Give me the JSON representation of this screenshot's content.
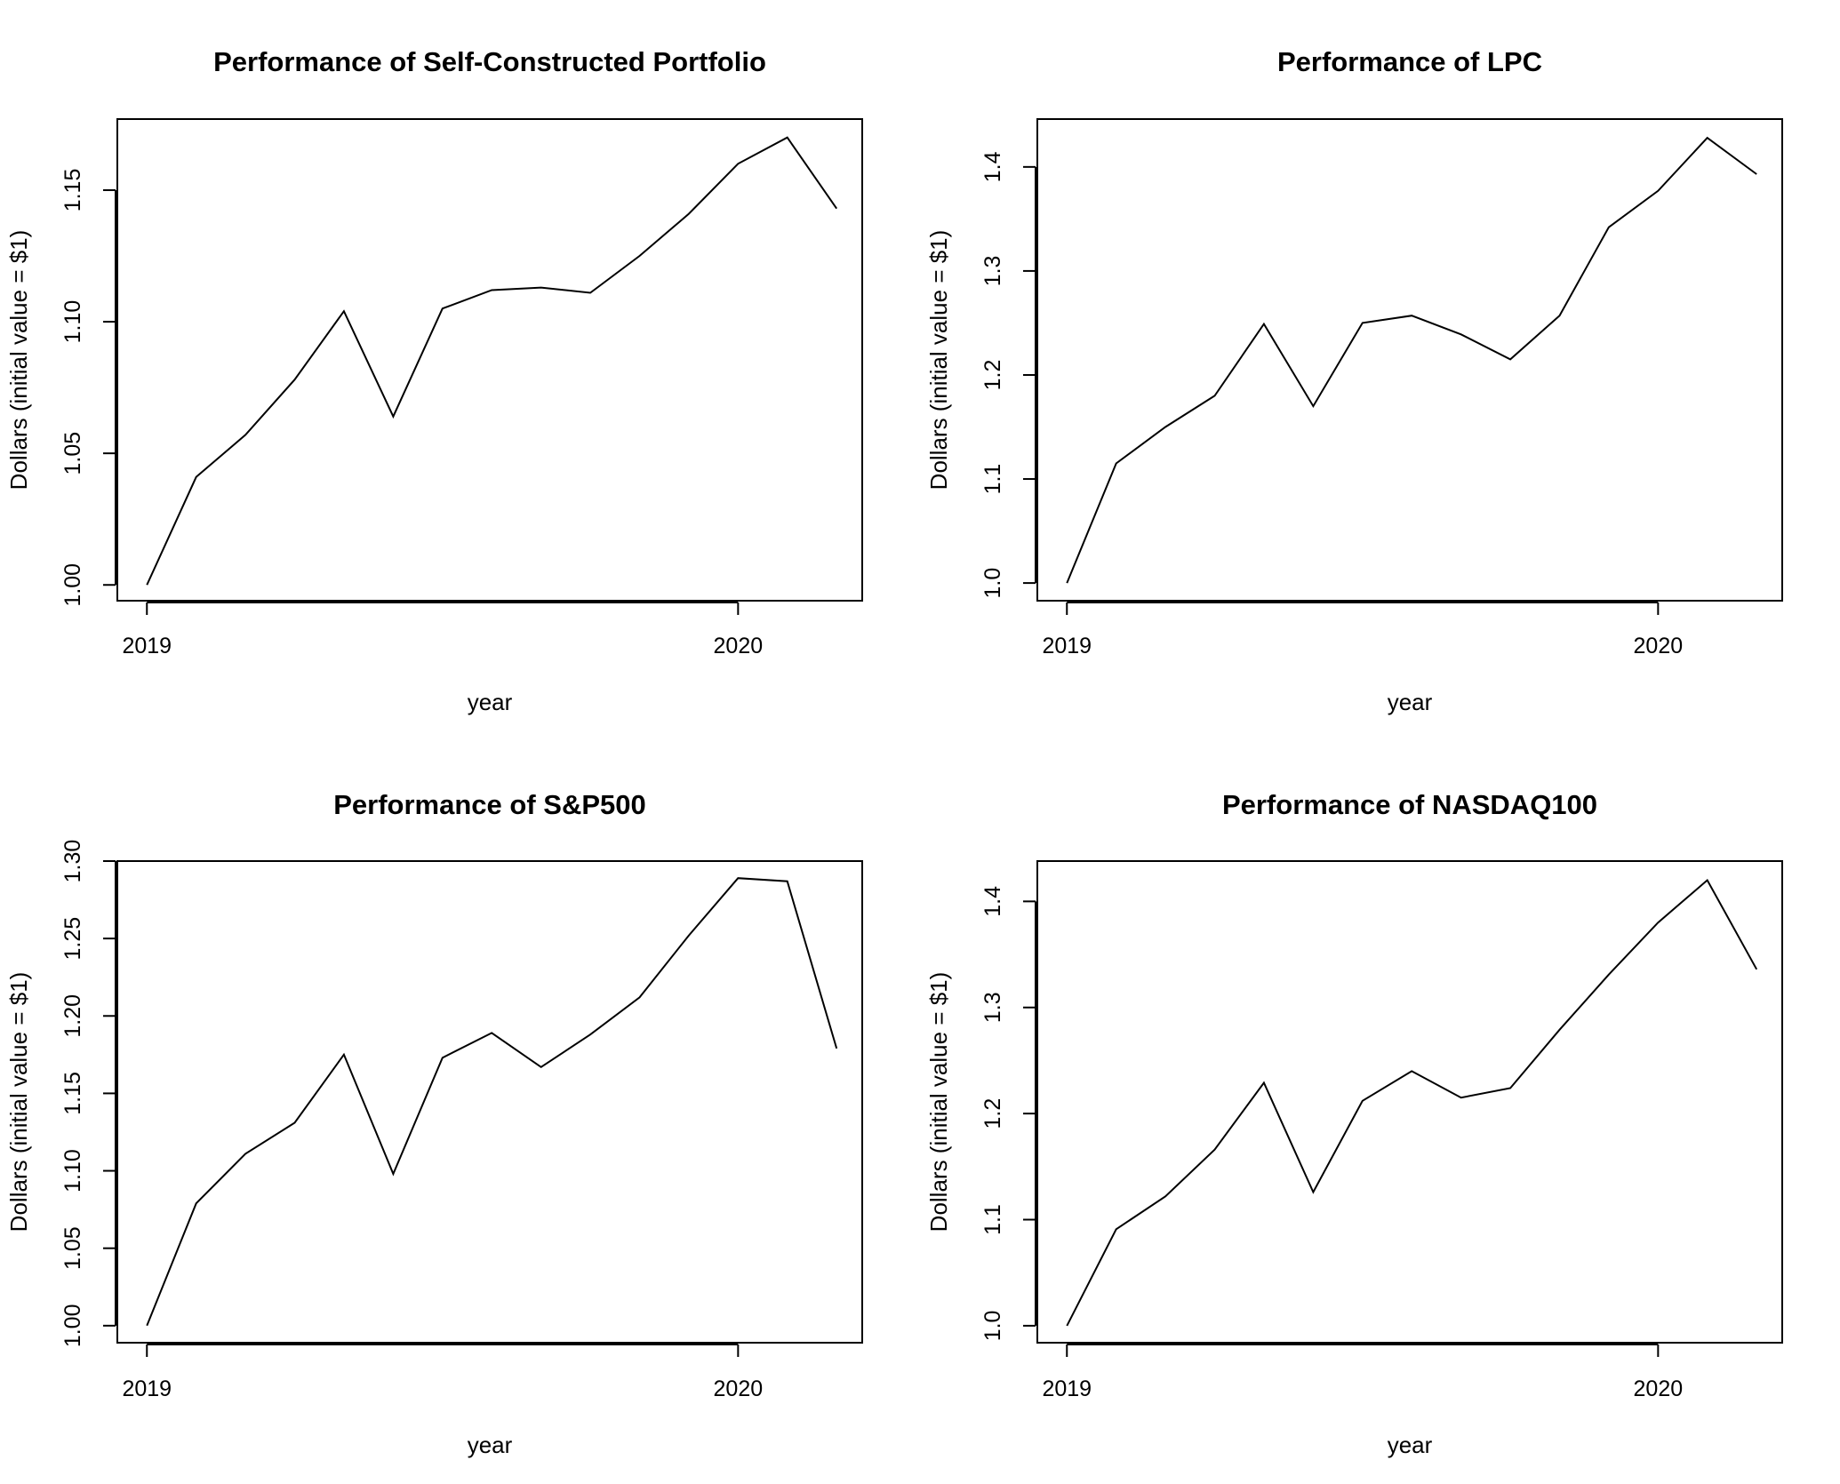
{
  "chart_data": [
    {
      "type": "line",
      "title": "Performance of Self-Constructed Portfolio",
      "xlabel": "year",
      "ylabel": "Dollars (initial value = $1)",
      "xlim": [
        2018.95,
        2020.21
      ],
      "ylim": [
        0.994,
        1.177
      ],
      "x_ticks": [
        2019,
        2020
      ],
      "y_ticks": [
        "1.00",
        "1.05",
        "1.10",
        "1.15"
      ],
      "grid": false,
      "x": [
        2019.0,
        2019.0833,
        2019.1667,
        2019.25,
        2019.3333,
        2019.4167,
        2019.5,
        2019.5833,
        2019.6667,
        2019.75,
        2019.8333,
        2019.9167,
        2020.0,
        2020.0833,
        2020.1667
      ],
      "values": [
        1.0,
        1.041,
        1.057,
        1.078,
        1.104,
        1.064,
        1.105,
        1.112,
        1.113,
        1.111,
        1.125,
        1.141,
        1.16,
        1.17,
        1.143
      ]
    },
    {
      "type": "line",
      "title": "Performance of LPC",
      "xlabel": "year",
      "ylabel": "Dollars (initial value = $1)",
      "xlim": [
        2018.95,
        2020.21
      ],
      "ylim": [
        0.983,
        1.446
      ],
      "x_ticks": [
        2019,
        2020
      ],
      "y_ticks": [
        "1.0",
        "1.1",
        "1.2",
        "1.3",
        "1.4"
      ],
      "grid": false,
      "x": [
        2019.0,
        2019.0833,
        2019.1667,
        2019.25,
        2019.3333,
        2019.4167,
        2019.5,
        2019.5833,
        2019.6667,
        2019.75,
        2019.8333,
        2019.9167,
        2020.0,
        2020.0833,
        2020.1667
      ],
      "values": [
        1.0,
        1.115,
        1.15,
        1.18,
        1.249,
        1.17,
        1.25,
        1.257,
        1.239,
        1.215,
        1.257,
        1.342,
        1.377,
        1.428,
        1.393
      ]
    },
    {
      "type": "line",
      "title": "Performance of S&P500",
      "xlabel": "year",
      "ylabel": "Dollars (initial value = $1)",
      "xlim": [
        2018.95,
        2020.21
      ],
      "ylim": [
        0.989,
        1.3
      ],
      "x_ticks": [
        2019,
        2020
      ],
      "y_ticks": [
        "1.00",
        "1.05",
        "1.10",
        "1.15",
        "1.20",
        "1.25",
        "1.30"
      ],
      "grid": false,
      "x": [
        2019.0,
        2019.0833,
        2019.1667,
        2019.25,
        2019.3333,
        2019.4167,
        2019.5,
        2019.5833,
        2019.6667,
        2019.75,
        2019.8333,
        2019.9167,
        2020.0,
        2020.0833,
        2020.1667
      ],
      "values": [
        1.0,
        1.079,
        1.111,
        1.131,
        1.175,
        1.098,
        1.173,
        1.189,
        1.167,
        1.188,
        1.212,
        1.252,
        1.289,
        1.287,
        1.179
      ]
    },
    {
      "type": "line",
      "title": "Performance of NASDAQ100",
      "xlabel": "year",
      "ylabel": "Dollars (initial value = $1)",
      "xlim": [
        2018.95,
        2020.21
      ],
      "ylim": [
        0.984,
        1.438
      ],
      "x_ticks": [
        2019,
        2020
      ],
      "y_ticks": [
        "1.0",
        "1.1",
        "1.2",
        "1.3",
        "1.4"
      ],
      "grid": false,
      "x": [
        2019.0,
        2019.0833,
        2019.1667,
        2019.25,
        2019.3333,
        2019.4167,
        2019.5,
        2019.5833,
        2019.6667,
        2019.75,
        2019.8333,
        2019.9167,
        2020.0,
        2020.0833,
        2020.1667
      ],
      "values": [
        1.0,
        1.091,
        1.122,
        1.166,
        1.229,
        1.126,
        1.212,
        1.24,
        1.215,
        1.224,
        1.279,
        1.331,
        1.38,
        1.42,
        1.336
      ]
    }
  ]
}
